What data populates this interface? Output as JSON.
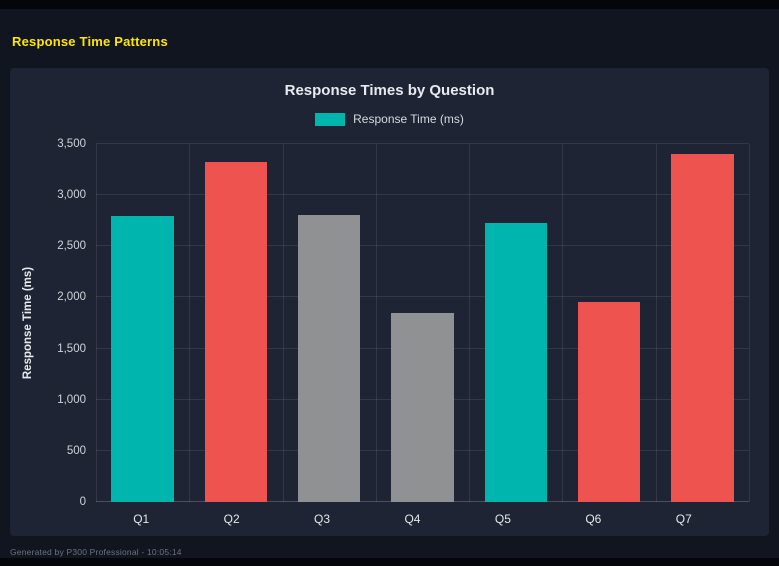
{
  "page": {
    "title": "Response Time Patterns",
    "footer": "Generated by P300 Professional - 10:05:14"
  },
  "chart_data": {
    "type": "bar",
    "title": "Response Times by Question",
    "legend": [
      {
        "label": "Response Time (ms)",
        "color": "#00b5ad"
      }
    ],
    "categories": [
      "Q1",
      "Q2",
      "Q3",
      "Q4",
      "Q5",
      "Q6",
      "Q7"
    ],
    "values": [
      2800,
      3320,
      2810,
      1850,
      2730,
      1960,
      3400
    ],
    "bar_colors": [
      "#00b5ad",
      "#ef5350",
      "#8f9193",
      "#8f9193",
      "#00b5ad",
      "#ef5350",
      "#ef5350"
    ],
    "xlabel": "",
    "ylabel": "Response Time (ms)",
    "ylim": [
      0,
      3500
    ],
    "yticks": [
      0,
      500,
      1000,
      1500,
      2000,
      2500,
      3000,
      3500
    ],
    "ytick_labels": [
      "0",
      "500",
      "1,000",
      "1,500",
      "2,000",
      "2,500",
      "3,000",
      "3,500"
    ],
    "grid": true,
    "legend_position": "top"
  },
  "colors": {
    "page_bg": "#10151f",
    "panel_bg": "#1e2433",
    "accent_yellow": "#ffe600",
    "teal": "#00b5ad",
    "red": "#ef5350",
    "gray": "#8f9193"
  }
}
